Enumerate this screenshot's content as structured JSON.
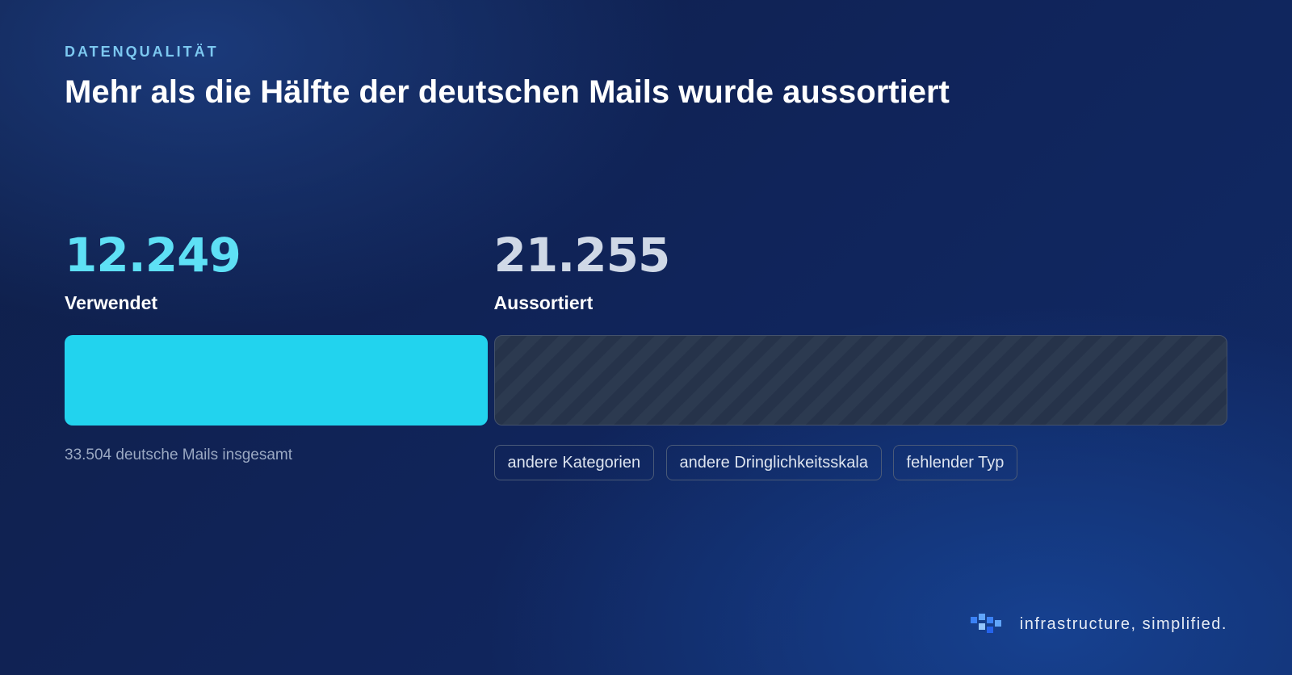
{
  "kicker": "DATENQUALITÄT",
  "chart_data": {
    "type": "stacked_bar",
    "title": "Mehr als die Hälfte der deutschen Mails wurde aussortiert",
    "series": [
      {
        "name": "Verwendet",
        "color": "#22d3ee",
        "values": [
          12249
        ],
        "value_labels": [
          "12.249"
        ],
        "label_color": "#5ee0f5"
      },
      {
        "name": "Aussortiert",
        "color": "#2c3a50",
        "values": [
          21255
        ],
        "value_labels": [
          "21.255"
        ],
        "label_color": "#cfd8e6",
        "hatched": true
      }
    ],
    "note": "33.504 deutsche Mails insgesamt"
  },
  "tags": [
    "andere Kategorien",
    "andere Dringlichkeitsskala",
    "fehlender Typ"
  ],
  "footer": "infrastructure, simplified."
}
